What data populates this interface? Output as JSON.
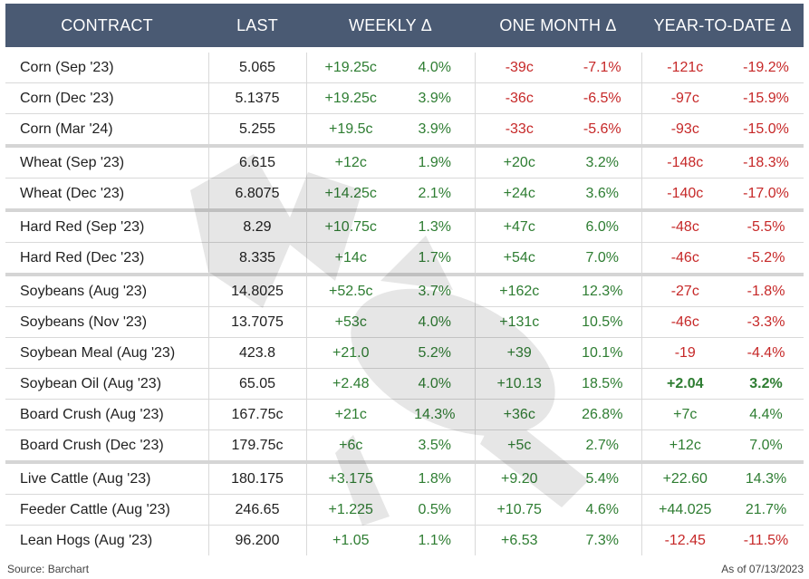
{
  "header": {
    "contract": "CONTRACT",
    "last": "LAST",
    "weekly": "WEEKLY  Δ",
    "one_month": "ONE MONTH  Δ",
    "ytd": "YEAR-TO-DATE  Δ"
  },
  "chart_data": {
    "type": "table",
    "columns": [
      "CONTRACT",
      "LAST",
      "WEEKLY Δ",
      "WEEKLY Δ %",
      "ONE MONTH Δ",
      "ONE MONTH Δ %",
      "YEAR-TO-DATE Δ",
      "YEAR-TO-DATE Δ %"
    ],
    "groups": [
      [
        {
          "name": "Corn (Sep '23)",
          "last": "5.065",
          "w_chg": "+19.25c",
          "w_pct": "4.0%",
          "m_chg": "-39c",
          "m_pct": "-7.1%",
          "y_chg": "-121c",
          "y_pct": "-19.2%"
        },
        {
          "name": "Corn (Dec '23)",
          "last": "5.1375",
          "w_chg": "+19.25c",
          "w_pct": "3.9%",
          "m_chg": "-36c",
          "m_pct": "-6.5%",
          "y_chg": "-97c",
          "y_pct": "-15.9%"
        },
        {
          "name": "Corn (Mar '24)",
          "last": "5.255",
          "w_chg": "+19.5c",
          "w_pct": "3.9%",
          "m_chg": "-33c",
          "m_pct": "-5.6%",
          "y_chg": "-93c",
          "y_pct": "-15.0%"
        }
      ],
      [
        {
          "name": "Wheat (Sep '23)",
          "last": "6.615",
          "w_chg": "+12c",
          "w_pct": "1.9%",
          "m_chg": "+20c",
          "m_pct": "3.2%",
          "y_chg": "-148c",
          "y_pct": "-18.3%"
        },
        {
          "name": "Wheat (Dec '23)",
          "last": "6.8075",
          "w_chg": "+14.25c",
          "w_pct": "2.1%",
          "m_chg": "+24c",
          "m_pct": "3.6%",
          "y_chg": "-140c",
          "y_pct": "-17.0%"
        }
      ],
      [
        {
          "name": "Hard Red (Sep '23)",
          "last": "8.29",
          "w_chg": "+10.75c",
          "w_pct": "1.3%",
          "m_chg": "+47c",
          "m_pct": "6.0%",
          "y_chg": "-48c",
          "y_pct": "-5.5%"
        },
        {
          "name": "Hard Red (Dec '23)",
          "last": "8.335",
          "w_chg": "+14c",
          "w_pct": "1.7%",
          "m_chg": "+54c",
          "m_pct": "7.0%",
          "y_chg": "-46c",
          "y_pct": "-5.2%"
        }
      ],
      [
        {
          "name": "Soybeans (Aug '23)",
          "last": "14.8025",
          "w_chg": "+52.5c",
          "w_pct": "3.7%",
          "m_chg": "+162c",
          "m_pct": "12.3%",
          "y_chg": "-27c",
          "y_pct": "-1.8%"
        },
        {
          "name": "Soybeans (Nov '23)",
          "last": "13.7075",
          "w_chg": "+53c",
          "w_pct": "4.0%",
          "m_chg": "+131c",
          "m_pct": "10.5%",
          "y_chg": "-46c",
          "y_pct": "-3.3%"
        },
        {
          "name": "Soybean Meal (Aug '23)",
          "last": "423.8",
          "w_chg": "+21.0",
          "w_pct": "5.2%",
          "m_chg": "+39",
          "m_pct": "10.1%",
          "y_chg": "-19",
          "y_pct": "-4.4%"
        },
        {
          "name": "Soybean Oil (Aug '23)",
          "last": "65.05",
          "w_chg": "+2.48",
          "w_pct": "4.0%",
          "m_chg": "+10.13",
          "m_pct": "18.5%",
          "y_chg": "+2.04",
          "y_pct": "3.2%",
          "y_bold": true
        },
        {
          "name": "Board Crush (Aug '23)",
          "last": "167.75c",
          "w_chg": "+21c",
          "w_pct": "14.3%",
          "m_chg": "+36c",
          "m_pct": "26.8%",
          "y_chg": "+7c",
          "y_pct": "4.4%"
        },
        {
          "name": "Board Crush (Dec '23)",
          "last": "179.75c",
          "w_chg": "+6c",
          "w_pct": "3.5%",
          "m_chg": "+5c",
          "m_pct": "2.7%",
          "y_chg": "+12c",
          "y_pct": "7.0%"
        }
      ],
      [
        {
          "name": "Live Cattle (Aug '23)",
          "last": "180.175",
          "w_chg": "+3.175",
          "w_pct": "1.8%",
          "m_chg": "+9.20",
          "m_pct": "5.4%",
          "y_chg": "+22.60",
          "y_pct": "14.3%"
        },
        {
          "name": "Feeder Cattle (Aug '23)",
          "last": "246.65",
          "w_chg": "+1.225",
          "w_pct": "0.5%",
          "m_chg": "+10.75",
          "m_pct": "4.6%",
          "y_chg": "+44.025",
          "y_pct": "21.7%"
        },
        {
          "name": "Lean Hogs (Aug '23)",
          "last": "96.200",
          "w_chg": "+1.05",
          "w_pct": "1.1%",
          "m_chg": "+6.53",
          "m_pct": "7.3%",
          "y_chg": "-12.45",
          "y_pct": "-11.5%"
        }
      ]
    ],
    "colors": {
      "positive": "#2e7d32",
      "negative": "#c62828",
      "header_bg": "#4a5a73"
    }
  },
  "footer": {
    "source": "Source: Barchart",
    "as_of": "As of 07/13/2023"
  },
  "watermark": {
    "text": "NO BULL"
  }
}
